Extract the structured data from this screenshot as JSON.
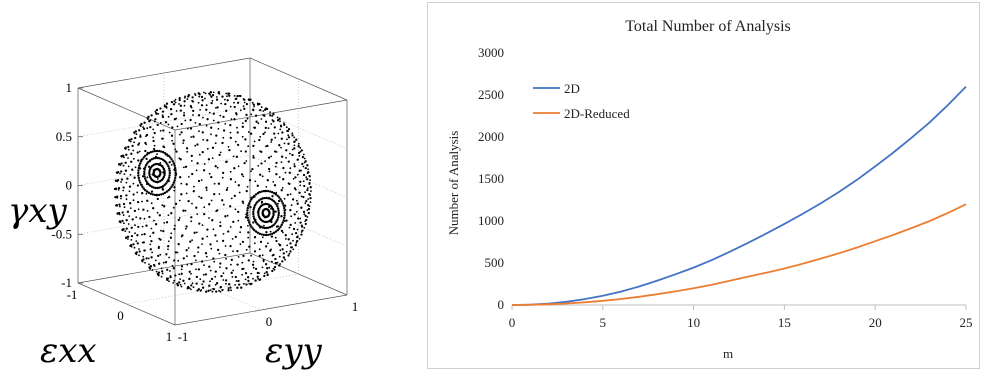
{
  "chart_data": [
    {
      "type": "scatter",
      "projection": "3d",
      "title": "",
      "xlabel": "εxx",
      "ylabel": "εyy",
      "zlabel": "γxy",
      "xlim": [
        -1,
        1
      ],
      "ylim": [
        -1,
        1
      ],
      "zlim": [
        -1,
        1
      ],
      "x_ticks": [
        "-1",
        "0",
        "1"
      ],
      "y_ticks": [
        "-1",
        "0",
        "1"
      ],
      "z_ticks": [
        "-1",
        "-0.5",
        "0",
        "0.5",
        "1"
      ],
      "grid": true,
      "description_points": "points on unit sphere surface"
    },
    {
      "type": "line",
      "title": "Total Number of Analysis",
      "xlabel": "m",
      "ylabel": "Number of Analysis",
      "xlim": [
        0,
        25
      ],
      "ylim": [
        0,
        3000
      ],
      "x_ticks": [
        "0",
        "5",
        "10",
        "15",
        "20",
        "25"
      ],
      "y_ticks": [
        "0",
        "500",
        "1000",
        "1500",
        "2000",
        "2500",
        "3000"
      ],
      "legend": "top-left",
      "x": [
        0,
        1,
        2,
        3,
        4,
        5,
        6,
        7,
        8,
        9,
        10,
        11,
        12,
        13,
        14,
        15,
        16,
        17,
        18,
        19,
        20,
        21,
        22,
        23,
        24,
        25
      ],
      "series": [
        {
          "name": "2D",
          "color": "#4472c4",
          "values": [
            0,
            4,
            17,
            38,
            70,
            110,
            160,
            220,
            290,
            365,
            445,
            535,
            635,
            740,
            850,
            965,
            1085,
            1210,
            1345,
            1490,
            1650,
            1815,
            1990,
            2175,
            2380,
            2600
          ]
        },
        {
          "name": "2D-Reduced",
          "color": "#ed7d31",
          "values": [
            0,
            2,
            8,
            18,
            32,
            50,
            72,
            98,
            128,
            162,
            200,
            242,
            288,
            338,
            385,
            435,
            490,
            552,
            615,
            685,
            760,
            835,
            915,
            1000,
            1095,
            1200
          ]
        }
      ]
    }
  ]
}
